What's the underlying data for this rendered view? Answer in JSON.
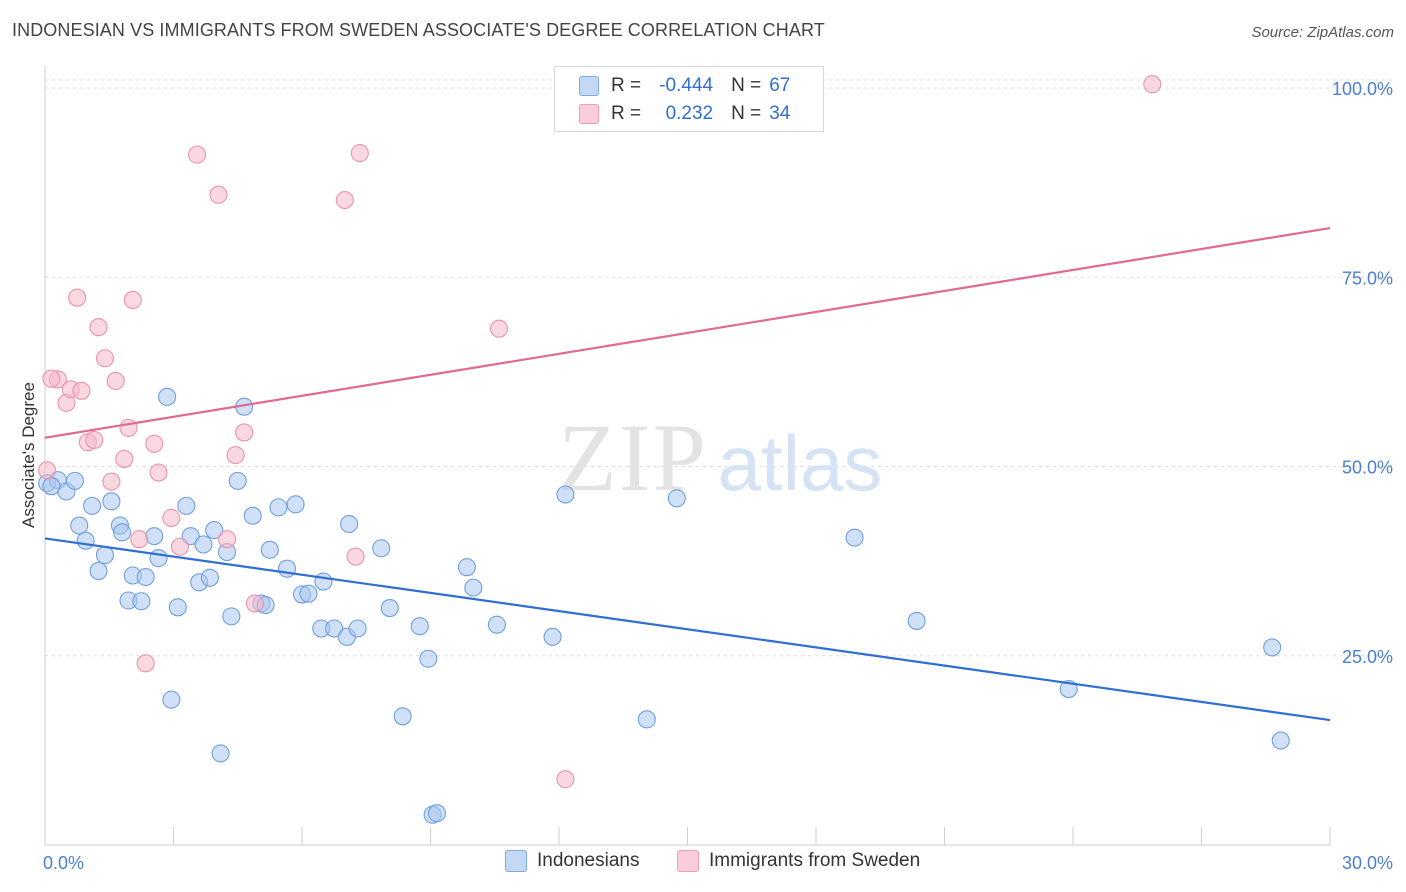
{
  "header": {
    "title": "INDONESIAN VS IMMIGRANTS FROM SWEDEN ASSOCIATE'S DEGREE CORRELATION CHART",
    "source": "Source: ZipAtlas.com"
  },
  "watermark": {
    "zip": "ZIP",
    "atlas": "atlas"
  },
  "legend_top": [
    {
      "r_label": "R =",
      "r_value": "-0.444",
      "n_label": "N =",
      "n_value": "67",
      "color": "#a9c7ef"
    },
    {
      "r_label": "R =",
      "r_value": "0.232",
      "n_label": "N =",
      "n_value": "34",
      "color": "#f5b8c8"
    }
  ],
  "chart_data": {
    "type": "scatter",
    "title": "INDONESIAN VS IMMIGRANTS FROM SWEDEN ASSOCIATE'S DEGREE CORRELATION CHART",
    "xlabel": "",
    "ylabel": "Associate's Degree",
    "xlim": [
      0,
      30
    ],
    "ylim": [
      0,
      100
    ],
    "x_tick_labels": [
      "0.0%",
      "30.0%"
    ],
    "y_tick_labels": [
      "25.0%",
      "50.0%",
      "75.0%",
      "100.0%"
    ],
    "y_ticks": [
      25,
      50,
      75,
      100
    ],
    "grid": true,
    "legend_position": "bottom",
    "series": [
      {
        "name": "Indonesians",
        "color": "#a9c7ef",
        "edge_color": "#6f9fe0",
        "line_color": "#2f6fd3",
        "trend": {
          "x": [
            0,
            30
          ],
          "y": [
            40.5,
            16.5
          ]
        },
        "points": [
          [
            0.05,
            47.8
          ],
          [
            0.3,
            48.2
          ],
          [
            0.5,
            46.7
          ],
          [
            0.7,
            48.1
          ],
          [
            0.8,
            42.2
          ],
          [
            0.95,
            40.2
          ],
          [
            1.1,
            44.8
          ],
          [
            1.25,
            36.2
          ],
          [
            1.4,
            38.3
          ],
          [
            1.55,
            45.4
          ],
          [
            1.75,
            42.2
          ],
          [
            1.8,
            41.3
          ],
          [
            1.95,
            32.3
          ],
          [
            2.05,
            35.6
          ],
          [
            2.25,
            32.2
          ],
          [
            2.35,
            35.4
          ],
          [
            2.55,
            40.8
          ],
          [
            2.65,
            37.9
          ],
          [
            2.85,
            59.2
          ],
          [
            2.95,
            19.2
          ],
          [
            3.1,
            31.4
          ],
          [
            3.3,
            44.8
          ],
          [
            3.4,
            40.8
          ],
          [
            3.6,
            34.7
          ],
          [
            3.7,
            39.7
          ],
          [
            3.85,
            35.3
          ],
          [
            3.95,
            41.6
          ],
          [
            4.1,
            12.1
          ],
          [
            4.25,
            38.7
          ],
          [
            4.35,
            30.2
          ],
          [
            4.5,
            48.1
          ],
          [
            4.65,
            57.9
          ],
          [
            4.85,
            43.5
          ],
          [
            5.05,
            31.9
          ],
          [
            5.15,
            31.7
          ],
          [
            5.25,
            39.0
          ],
          [
            5.45,
            44.6
          ],
          [
            5.65,
            36.5
          ],
          [
            5.85,
            45.0
          ],
          [
            6.0,
            33.1
          ],
          [
            6.15,
            33.2
          ],
          [
            6.45,
            28.6
          ],
          [
            6.5,
            34.8
          ],
          [
            6.75,
            28.6
          ],
          [
            7.05,
            27.5
          ],
          [
            7.1,
            42.4
          ],
          [
            7.3,
            28.6
          ],
          [
            7.85,
            39.2
          ],
          [
            8.05,
            31.3
          ],
          [
            8.35,
            17.0
          ],
          [
            8.75,
            28.9
          ],
          [
            8.95,
            24.6
          ],
          [
            9.05,
            4.0
          ],
          [
            9.15,
            4.2
          ],
          [
            9.85,
            36.7
          ],
          [
            10.0,
            34.0
          ],
          [
            10.55,
            29.1
          ],
          [
            11.85,
            27.5
          ],
          [
            12.15,
            46.3
          ],
          [
            14.05,
            16.6
          ],
          [
            14.75,
            45.8
          ],
          [
            18.9,
            40.6
          ],
          [
            20.35,
            29.6
          ],
          [
            23.9,
            20.6
          ],
          [
            28.65,
            26.1
          ],
          [
            28.85,
            13.8
          ],
          [
            0.15,
            47.4
          ]
        ]
      },
      {
        "name": "Immigrants from Sweden",
        "color": "#f5b8c8",
        "edge_color": "#ea94ac",
        "line_color": "#e06a91",
        "trend": {
          "x": [
            0,
            30
          ],
          "y": [
            53.8,
            81.5
          ]
        },
        "points": [
          [
            0.05,
            49.5
          ],
          [
            0.3,
            61.5
          ],
          [
            0.5,
            58.4
          ],
          [
            0.6,
            60.2
          ],
          [
            0.75,
            72.3
          ],
          [
            0.85,
            60.0
          ],
          [
            1.0,
            53.2
          ],
          [
            1.15,
            53.5
          ],
          [
            1.25,
            68.4
          ],
          [
            1.4,
            64.3
          ],
          [
            1.55,
            48.0
          ],
          [
            1.65,
            61.3
          ],
          [
            1.85,
            51.0
          ],
          [
            1.95,
            55.1
          ],
          [
            2.05,
            72.0
          ],
          [
            2.2,
            40.4
          ],
          [
            2.35,
            24.0
          ],
          [
            2.55,
            53.0
          ],
          [
            2.65,
            49.2
          ],
          [
            2.95,
            43.2
          ],
          [
            3.15,
            39.4
          ],
          [
            3.55,
            91.2
          ],
          [
            4.05,
            85.9
          ],
          [
            4.25,
            40.4
          ],
          [
            4.45,
            51.5
          ],
          [
            4.65,
            54.5
          ],
          [
            4.9,
            31.9
          ],
          [
            7.0,
            85.2
          ],
          [
            7.25,
            38.1
          ],
          [
            7.35,
            91.4
          ],
          [
            10.6,
            68.2
          ],
          [
            12.15,
            8.7
          ],
          [
            25.85,
            100.5
          ],
          [
            0.15,
            61.6
          ]
        ]
      }
    ]
  },
  "legend_bottom": [
    {
      "label": "Indonesians",
      "color": "#a9c7ef"
    },
    {
      "label": "Immigrants from Sweden",
      "color": "#f5b8c8"
    }
  ]
}
